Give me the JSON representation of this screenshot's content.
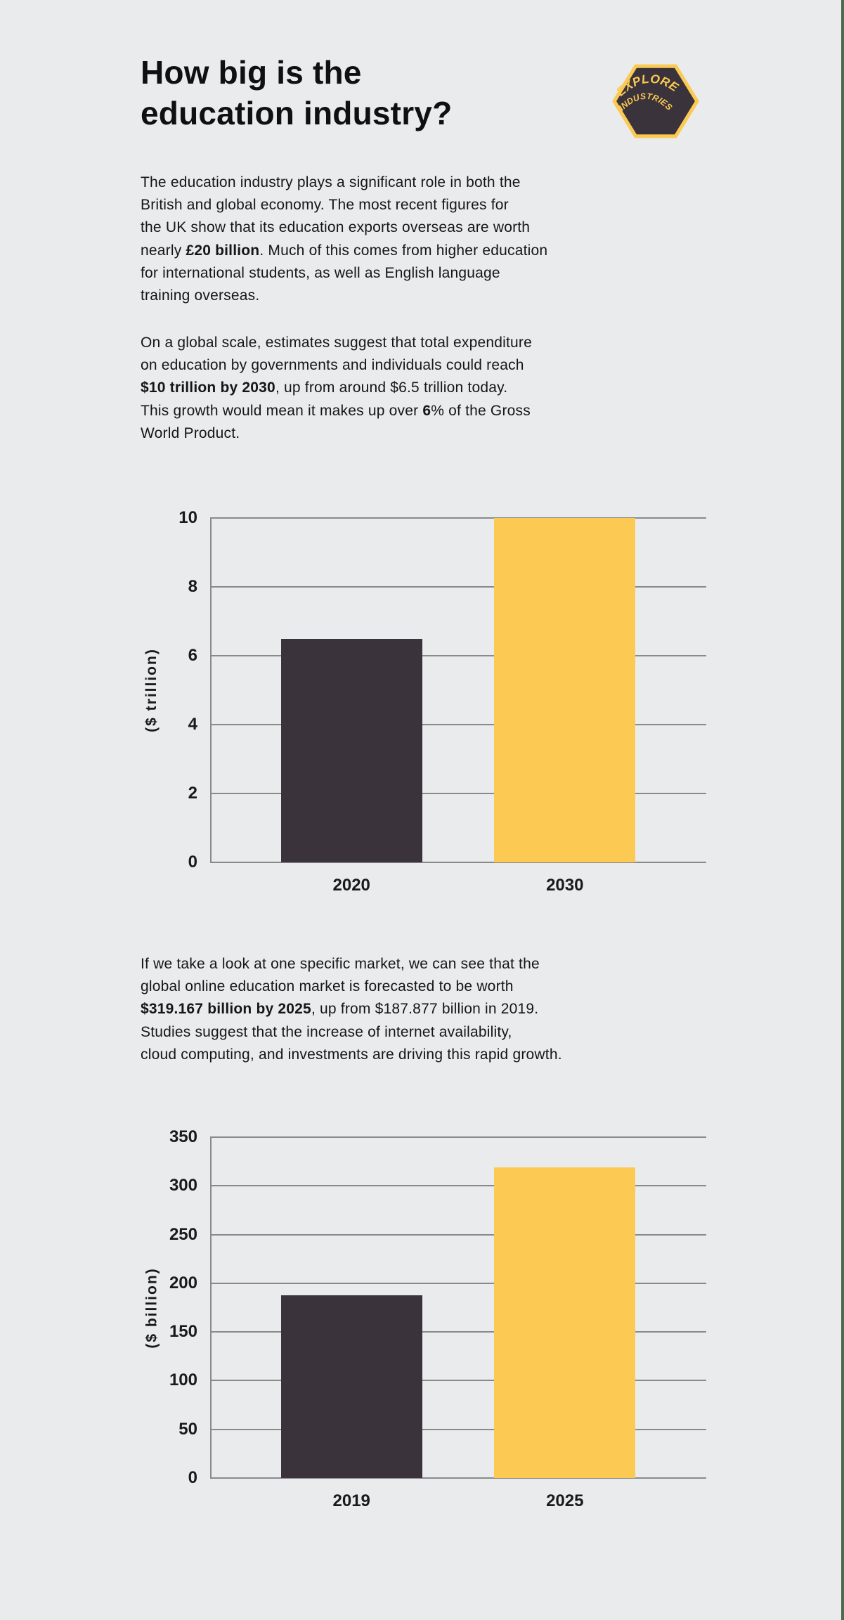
{
  "page": {
    "title": "How big is the\neducation industry?",
    "background": "#eaebed",
    "accent_yellow": "#fcca52",
    "accent_dark": "#3a333b",
    "edge_strip_color": "#4e6b51"
  },
  "logo": {
    "line1": "EXPLORE",
    "line2": "INDUSTRIES",
    "fill": "#3a333b",
    "border": "#fcca52"
  },
  "paragraphs": [
    {
      "lines": [
        [
          {
            "t": "The education industry plays a significant role in both the"
          }
        ],
        [
          {
            "t": "British and global economy. The most recent figures for"
          }
        ],
        [
          {
            "t": "the UK show that its education exports overseas are worth"
          }
        ],
        [
          {
            "t": "nearly "
          },
          {
            "t": "£20 billion",
            "b": true
          },
          {
            "t": ". Much of this comes from higher education"
          }
        ],
        [
          {
            "t": "for international students, as well as English language"
          }
        ],
        [
          {
            "t": "training overseas."
          }
        ]
      ]
    },
    {
      "lines": [
        [
          {
            "t": "On a global scale, estimates suggest that total expenditure"
          }
        ],
        [
          {
            "t": "on education by governments and individuals could reach"
          }
        ],
        [
          {
            "t": "$10 trillion by 2030",
            "b": true
          },
          {
            "t": ", up from around $6.5 trillion today."
          }
        ],
        [
          {
            "t": "This growth would mean it makes up over "
          },
          {
            "t": "6",
            "b": true
          },
          {
            "t": "% of the Gross"
          }
        ],
        [
          {
            "t": "World Product."
          }
        ]
      ]
    },
    {
      "lines": [
        [
          {
            "t": "If we take a look at one specific market, we can see that the"
          }
        ],
        [
          {
            "t": "global online education market is forecasted to be worth"
          }
        ],
        [
          {
            "t": "$319.167 billion by 2025",
            "b": true
          },
          {
            "t": ", up from $187.877 billion in 2019."
          }
        ],
        [
          {
            "t": "Studies suggest that the increase of internet availability,"
          }
        ],
        [
          {
            "t": "cloud computing, and investments are driving this rapid growth."
          }
        ]
      ]
    }
  ],
  "chart_data": [
    {
      "type": "bar",
      "title": "",
      "categories": [
        "2020",
        "2030"
      ],
      "values": [
        6.5,
        10
      ],
      "xlabel": "",
      "ylabel": "($ trillion)",
      "yticks": [
        0,
        2,
        4,
        6,
        8,
        10
      ],
      "ylim": [
        0,
        10
      ],
      "grid": "horizontal",
      "legend": "none",
      "bar_colors": [
        "#3a333b",
        "#fcca52"
      ],
      "gridline_color": "#8a8a8a"
    },
    {
      "type": "bar",
      "title": "",
      "categories": [
        "2019",
        "2025"
      ],
      "values": [
        187.877,
        319.167
      ],
      "xlabel": "",
      "ylabel": "($ billion)",
      "yticks": [
        0,
        50,
        100,
        150,
        200,
        250,
        300,
        350
      ],
      "ylim": [
        0,
        350
      ],
      "grid": "horizontal",
      "legend": "none",
      "bar_colors": [
        "#3a333b",
        "#fcca52"
      ],
      "gridline_color": "#8a8a8a"
    }
  ]
}
